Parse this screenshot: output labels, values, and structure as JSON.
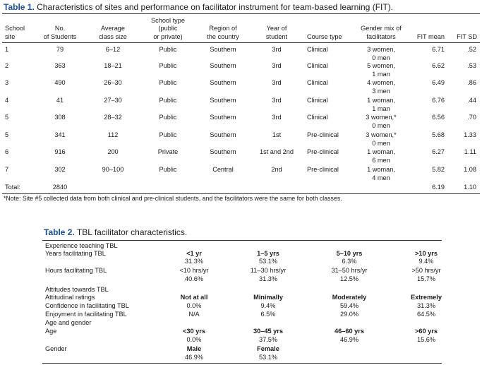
{
  "table1": {
    "label": "Table 1.",
    "caption": "Characteristics of sites and performance on facilitator instrument for team-based learning (FIT).",
    "headers": {
      "site": [
        "School",
        "site"
      ],
      "students": [
        "No.",
        "of Students"
      ],
      "class_size": [
        "Average",
        "class size"
      ],
      "school_type": [
        "School type",
        "(public",
        "or private)"
      ],
      "region": [
        "Region of",
        "the country"
      ],
      "year": [
        "Year of",
        "student"
      ],
      "course": "Course type",
      "gender": [
        "Gender mix of",
        "facilitators"
      ],
      "fit_mean": "FIT mean",
      "fit_sd": "FIT SD"
    },
    "rows": [
      {
        "site": "1",
        "students": "79",
        "class_size": "6–12",
        "type": "Public",
        "region": "Southern",
        "year": "3rd",
        "course": "Clinical",
        "gender1": "3 women,",
        "gender2": "0 men",
        "mean": "6.71",
        "sd": ".52"
      },
      {
        "site": "2",
        "students": "363",
        "class_size": "18–21",
        "type": "Public",
        "region": "Southern",
        "year": "3rd",
        "course": "Clinical",
        "gender1": "5 women,",
        "gender2": "1 man",
        "mean": "6.62",
        "sd": ".53"
      },
      {
        "site": "3",
        "students": "490",
        "class_size": "26–30",
        "type": "Public",
        "region": "Southern",
        "year": "3rd",
        "course": "Clinical",
        "gender1": "4 women,",
        "gender2": "3 men",
        "mean": "6.49",
        "sd": ".86"
      },
      {
        "site": "4",
        "students": "41",
        "class_size": "27–30",
        "type": "Public",
        "region": "Southern",
        "year": "3rd",
        "course": "Clinical",
        "gender1": "1 woman,",
        "gender2": "1 man",
        "mean": "6.76",
        "sd": ".44"
      },
      {
        "site": "5",
        "students": "308",
        "class_size": "28–32",
        "type": "Public",
        "region": "Southern",
        "year": "3rd",
        "course": "Clinical",
        "gender1": "3 women,*",
        "gender2": "0 men",
        "mean": "6.56",
        "sd": ".70"
      },
      {
        "site": "5",
        "students": "341",
        "class_size": "112",
        "type": "Public",
        "region": "Southern",
        "year": "1st",
        "course": "Pre-clinical",
        "gender1": "3 women,*",
        "gender2": "0 men",
        "mean": "5.68",
        "sd": "1.33"
      },
      {
        "site": "6",
        "students": "916",
        "class_size": "200",
        "type": "Private",
        "region": "Southern",
        "year": "1st and 2nd",
        "course": "Pre-clinical",
        "gender1": "1 woman,",
        "gender2": "6 men",
        "mean": "6.27",
        "sd": "1.11"
      },
      {
        "site": "7",
        "students": "302",
        "class_size": "90–100",
        "type": "Public",
        "region": "Central",
        "year": "2nd",
        "course": "Pre-clinical",
        "gender1": "1 woman,",
        "gender2": "4 men",
        "mean": "5.82",
        "sd": "1.08"
      }
    ],
    "total": {
      "label": "Total:",
      "students": "2840",
      "mean": "6.19",
      "sd": "1.10"
    },
    "note": "*Note: Site #5 collected data from both clinical and pre-clinical students, and the facilitators were the same for both classes."
  },
  "table2": {
    "label": "Table 2.",
    "caption": "TBL facilitator characteristics.",
    "sec_experience": "Experience teaching TBL",
    "years_label": "Years facilitating TBL",
    "years_heads": [
      "<1 yr",
      "1–5 yrs",
      "5–10 yrs",
      ">10 yrs"
    ],
    "years_vals": [
      "31.3%",
      "53.1%",
      "6.3%",
      "9.4%"
    ],
    "hours_label": "Hours facilitating TBL",
    "hours_heads": [
      "<10 hrs/yr",
      "11–30 hrs/yr",
      "31–50 hrs/yr",
      ">50 hrs/yr"
    ],
    "hours_vals": [
      "40.6%",
      "31.3%",
      "12.5%",
      "15.7%"
    ],
    "sec_attitudes": "Attitudes towards TBL",
    "att_label": "Attitudinal ratings",
    "att_heads": [
      "Not at all",
      "Minimally",
      "Moderately",
      "Extremely"
    ],
    "conf_label": "Confidence in facilitating TBL",
    "conf_vals": [
      "0.0%",
      "9.4%",
      "59.4%",
      "31.3%"
    ],
    "enjoy_label": "Enjoyment in facilitating TBL",
    "enjoy_vals": [
      "N/A",
      "6.5%",
      "29.0%",
      "64.5%"
    ],
    "sec_age_gender": "Age and gender",
    "age_label": "Age",
    "age_heads": [
      "<30 yrs",
      "30–45 yrs",
      "46–60 yrs",
      ">60 yrs"
    ],
    "age_vals": [
      "0.0%",
      "37.5%",
      "46.9%",
      "15.6%"
    ],
    "gender_label": "Gender",
    "gender_heads": [
      "Male",
      "Female"
    ],
    "gender_vals": [
      "46.9%",
      "53.1%"
    ]
  },
  "colors": {
    "accent": "#1f4e8c",
    "text": "#1a1a1a",
    "rule": "#333333"
  }
}
